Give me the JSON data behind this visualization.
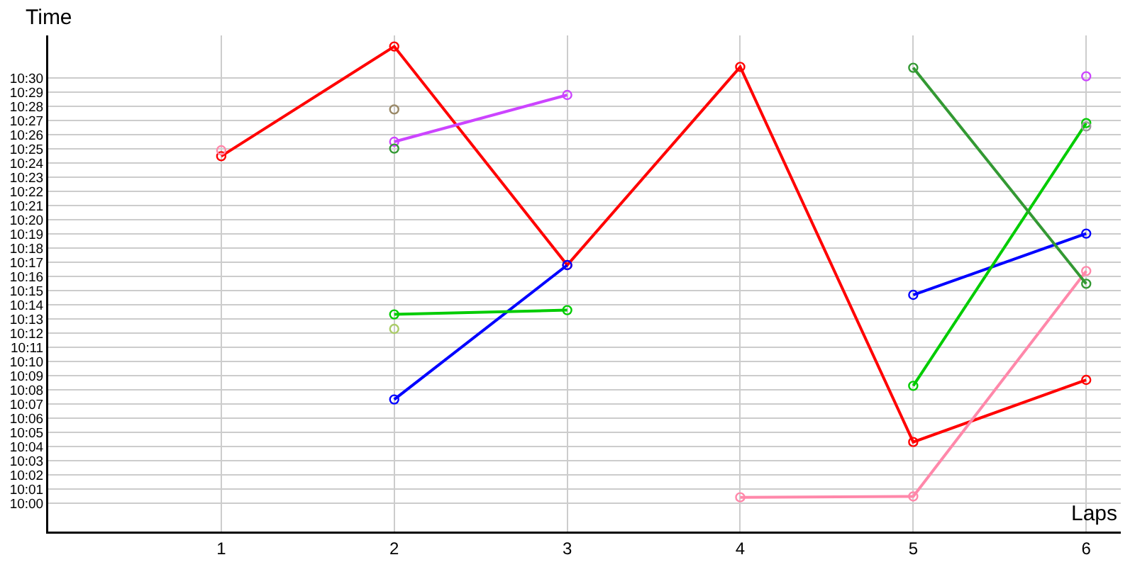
{
  "chart_data": {
    "type": "line",
    "xlabel": "Laps",
    "ylabel": "Time",
    "x": [
      1,
      2,
      3,
      4,
      5,
      6
    ],
    "xlim": [
      0,
      6.2
    ],
    "xticks": [
      1,
      2,
      3,
      4,
      5,
      6
    ],
    "ylim": [
      9.9667,
      10.55
    ],
    "yticks": [
      {
        "value": 10,
        "label": "10:00"
      },
      {
        "value": 10.0167,
        "label": "10:01"
      },
      {
        "value": 10.0333,
        "label": "10:02"
      },
      {
        "value": 10.05,
        "label": "10:03"
      },
      {
        "value": 10.0667,
        "label": "10:04"
      },
      {
        "value": 10.0833,
        "label": "10:05"
      },
      {
        "value": 10.1,
        "label": "10:06"
      },
      {
        "value": 10.1167,
        "label": "10:07"
      },
      {
        "value": 10.1333,
        "label": "10:08"
      },
      {
        "value": 10.15,
        "label": "10:09"
      },
      {
        "value": 10.1667,
        "label": "10:10"
      },
      {
        "value": 10.1833,
        "label": "10:11"
      },
      {
        "value": 10.2,
        "label": "10:12"
      },
      {
        "value": 10.2167,
        "label": "10:13"
      },
      {
        "value": 10.2333,
        "label": "10:14"
      },
      {
        "value": 10.25,
        "label": "10:15"
      },
      {
        "value": 10.2667,
        "label": "10:16"
      },
      {
        "value": 10.2833,
        "label": "10:17"
      },
      {
        "value": 10.3,
        "label": "10:18"
      },
      {
        "value": 10.3167,
        "label": "10:19"
      },
      {
        "value": 10.3333,
        "label": "10:20"
      },
      {
        "value": 10.35,
        "label": "10:21"
      },
      {
        "value": 10.3667,
        "label": "10:22"
      },
      {
        "value": 10.3833,
        "label": "10:23"
      },
      {
        "value": 10.4,
        "label": "10:24"
      },
      {
        "value": 10.4167,
        "label": "10:25"
      },
      {
        "value": 10.4333,
        "label": "10:26"
      },
      {
        "value": 10.45,
        "label": "10:27"
      },
      {
        "value": 10.4667,
        "label": "10:28"
      },
      {
        "value": 10.4833,
        "label": "10:29"
      },
      {
        "value": 10.5,
        "label": "10:30"
      }
    ],
    "grid": true,
    "marker": "circle",
    "line_style": "solid",
    "series": [
      {
        "color": "#ff0000",
        "values": [
          10.408,
          10.537,
          10.28,
          10.513,
          10.072,
          10.145
        ]
      },
      {
        "color": "#ff88aa",
        "values": [
          10.415,
          null,
          null,
          10.007,
          10.008,
          10.273
        ]
      },
      {
        "color": "#cc44ff",
        "values": [
          null,
          10.425,
          10.48,
          null,
          null,
          10.502
        ]
      },
      {
        "color": "#0000ff",
        "values": [
          null,
          10.122,
          10.28,
          null,
          10.245,
          10.317
        ]
      },
      {
        "color": "#00cc00",
        "values": [
          null,
          10.222,
          10.227,
          null,
          10.138,
          10.447
        ]
      },
      {
        "color": "#339933",
        "values": [
          null,
          10.417,
          null,
          null,
          10.512,
          10.258
        ]
      },
      {
        "color": "#aacc66",
        "values": [
          null,
          10.205,
          null,
          null,
          null,
          null
        ]
      },
      {
        "color": "#998866",
        "values": [
          null,
          10.463,
          null,
          null,
          null,
          null
        ]
      },
      {
        "color": "#999999",
        "values": [
          null,
          null,
          null,
          null,
          null,
          10.443
        ]
      }
    ]
  }
}
